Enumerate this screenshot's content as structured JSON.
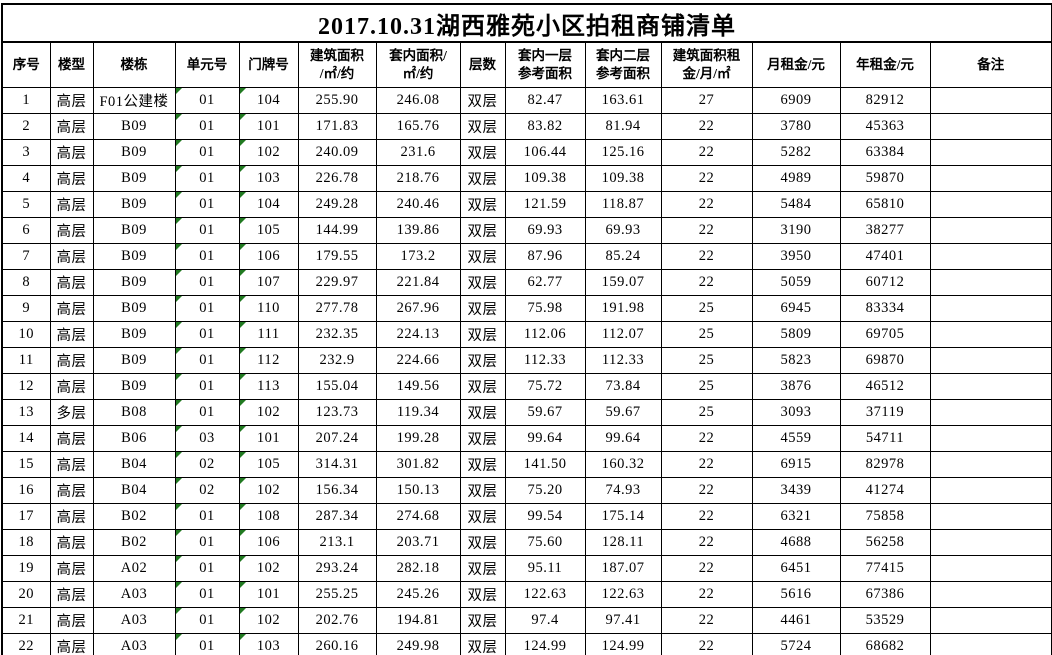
{
  "title": "2017.10.31湖西雅苑小区拍租商铺清单",
  "colors": {
    "flag_triangle": "#217a21",
    "grid_border": "#000000",
    "background": "#ffffff",
    "text": "#000000"
  },
  "table": {
    "flagged_columns": [
      3,
      4
    ],
    "flag_icon_meaning": "number-stored-as-text-flag",
    "columns": [
      {
        "key": "seq",
        "label": "序号"
      },
      {
        "key": "building_type",
        "label": "楼型"
      },
      {
        "key": "building",
        "label": "楼栋"
      },
      {
        "key": "unit",
        "label": "单元号"
      },
      {
        "key": "door_no",
        "label": "门牌号"
      },
      {
        "key": "gross_area",
        "label": "建筑面积\n/㎡/约"
      },
      {
        "key": "inner_area",
        "label": "套内面积/\n㎡/约"
      },
      {
        "key": "floors",
        "label": "层数"
      },
      {
        "key": "floor1_ref_area",
        "label": "套内一层\n参考面积"
      },
      {
        "key": "floor2_ref_area",
        "label": "套内二层\n参考面积"
      },
      {
        "key": "rent_per_sqm",
        "label": "建筑面积租\n金/月/㎡"
      },
      {
        "key": "monthly_rent",
        "label": "月租金/元"
      },
      {
        "key": "annual_rent",
        "label": "年租金/元"
      },
      {
        "key": "remarks",
        "label": "备注"
      }
    ],
    "rows": [
      [
        "1",
        "高层",
        "F01公建楼",
        "01",
        "104",
        "255.90",
        "246.08",
        "双层",
        "82.47",
        "163.61",
        "27",
        "6909",
        "82912",
        ""
      ],
      [
        "2",
        "高层",
        "B09",
        "01",
        "101",
        "171.83",
        "165.76",
        "双层",
        "83.82",
        "81.94",
        "22",
        "3780",
        "45363",
        ""
      ],
      [
        "3",
        "高层",
        "B09",
        "01",
        "102",
        "240.09",
        "231.6",
        "双层",
        "106.44",
        "125.16",
        "22",
        "5282",
        "63384",
        ""
      ],
      [
        "4",
        "高层",
        "B09",
        "01",
        "103",
        "226.78",
        "218.76",
        "双层",
        "109.38",
        "109.38",
        "22",
        "4989",
        "59870",
        ""
      ],
      [
        "5",
        "高层",
        "B09",
        "01",
        "104",
        "249.28",
        "240.46",
        "双层",
        "121.59",
        "118.87",
        "22",
        "5484",
        "65810",
        ""
      ],
      [
        "6",
        "高层",
        "B09",
        "01",
        "105",
        "144.99",
        "139.86",
        "双层",
        "69.93",
        "69.93",
        "22",
        "3190",
        "38277",
        ""
      ],
      [
        "7",
        "高层",
        "B09",
        "01",
        "106",
        "179.55",
        "173.2",
        "双层",
        "87.96",
        "85.24",
        "22",
        "3950",
        "47401",
        ""
      ],
      [
        "8",
        "高层",
        "B09",
        "01",
        "107",
        "229.97",
        "221.84",
        "双层",
        "62.77",
        "159.07",
        "22",
        "5059",
        "60712",
        ""
      ],
      [
        "9",
        "高层",
        "B09",
        "01",
        "110",
        "277.78",
        "267.96",
        "双层",
        "75.98",
        "191.98",
        "25",
        "6945",
        "83334",
        ""
      ],
      [
        "10",
        "高层",
        "B09",
        "01",
        "111",
        "232.35",
        "224.13",
        "双层",
        "112.06",
        "112.07",
        "25",
        "5809",
        "69705",
        ""
      ],
      [
        "11",
        "高层",
        "B09",
        "01",
        "112",
        "232.9",
        "224.66",
        "双层",
        "112.33",
        "112.33",
        "25",
        "5823",
        "69870",
        ""
      ],
      [
        "12",
        "高层",
        "B09",
        "01",
        "113",
        "155.04",
        "149.56",
        "双层",
        "75.72",
        "73.84",
        "25",
        "3876",
        "46512",
        ""
      ],
      [
        "13",
        "多层",
        "B08",
        "01",
        "102",
        "123.73",
        "119.34",
        "双层",
        "59.67",
        "59.67",
        "25",
        "3093",
        "37119",
        ""
      ],
      [
        "14",
        "高层",
        "B06",
        "03",
        "101",
        "207.24",
        "199.28",
        "双层",
        "99.64",
        "99.64",
        "22",
        "4559",
        "54711",
        ""
      ],
      [
        "15",
        "高层",
        "B04",
        "02",
        "105",
        "314.31",
        "301.82",
        "双层",
        "141.50",
        "160.32",
        "22",
        "6915",
        "82978",
        ""
      ],
      [
        "16",
        "高层",
        "B04",
        "02",
        "102",
        "156.34",
        "150.13",
        "双层",
        "75.20",
        "74.93",
        "22",
        "3439",
        "41274",
        ""
      ],
      [
        "17",
        "高层",
        "B02",
        "01",
        "108",
        "287.34",
        "274.68",
        "双层",
        "99.54",
        "175.14",
        "22",
        "6321",
        "75858",
        ""
      ],
      [
        "18",
        "高层",
        "B02",
        "01",
        "106",
        "213.1",
        "203.71",
        "双层",
        "75.60",
        "128.11",
        "22",
        "4688",
        "56258",
        ""
      ],
      [
        "19",
        "高层",
        "A02",
        "01",
        "102",
        "293.24",
        "282.18",
        "双层",
        "95.11",
        "187.07",
        "22",
        "6451",
        "77415",
        ""
      ],
      [
        "20",
        "高层",
        "A03",
        "01",
        "101",
        "255.25",
        "245.26",
        "双层",
        "122.63",
        "122.63",
        "22",
        "5616",
        "67386",
        ""
      ],
      [
        "21",
        "高层",
        "A03",
        "01",
        "102",
        "202.76",
        "194.81",
        "双层",
        "97.4",
        "97.41",
        "22",
        "4461",
        "53529",
        ""
      ],
      [
        "22",
        "高层",
        "A03",
        "01",
        "103",
        "260.16",
        "249.98",
        "双层",
        "124.99",
        "124.99",
        "22",
        "5724",
        "68682",
        ""
      ]
    ]
  }
}
